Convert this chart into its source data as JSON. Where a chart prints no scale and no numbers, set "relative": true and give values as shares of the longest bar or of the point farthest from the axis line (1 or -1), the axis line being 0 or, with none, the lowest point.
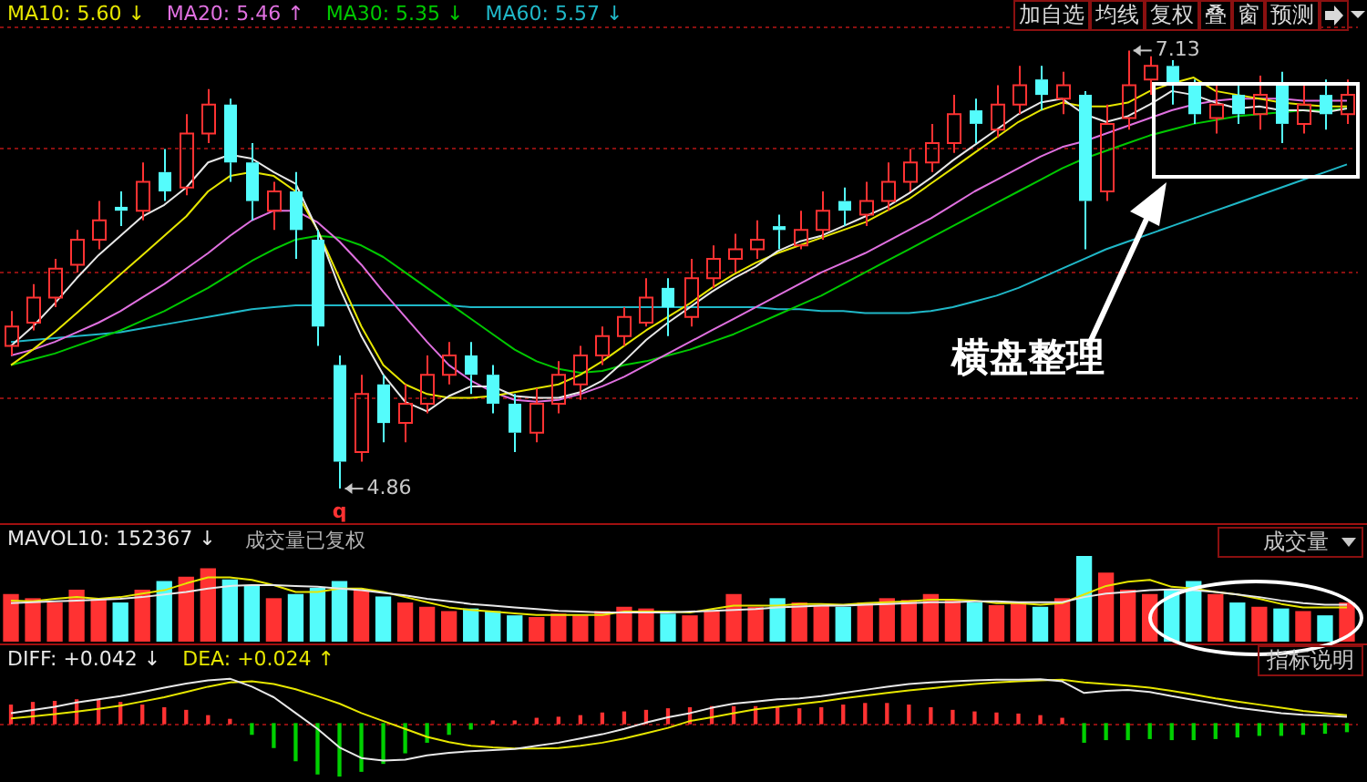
{
  "chart_data": [
    {
      "type": "candlestick",
      "legend": "top left",
      "grid": "y",
      "tick_labels": false,
      "categories": [
        null,
        null,
        null,
        null,
        null,
        null,
        null,
        null,
        null,
        null,
        null,
        null,
        null,
        null,
        null,
        null,
        null,
        null,
        null,
        null,
        null,
        null,
        null,
        null,
        null,
        null,
        null,
        null,
        null,
        null,
        null,
        null,
        null,
        null,
        null,
        null,
        null,
        null,
        null,
        null,
        null,
        null,
        null,
        null,
        null,
        null,
        null,
        null,
        null,
        null,
        null,
        null,
        null,
        null,
        null,
        null,
        null,
        null,
        null,
        null,
        null,
        null
      ],
      "ylim": [
        4.7,
        7.25
      ],
      "yticks": [
        {
          "value": 5.33,
          "label": null
        },
        {
          "value": 5.98,
          "label": null
        },
        {
          "value": 6.62,
          "label": null
        },
        {
          "value": 7.25,
          "label": null
        }
      ],
      "ohlc": [
        [
          5.6,
          5.78,
          5.55,
          5.7
        ],
        [
          5.72,
          5.92,
          5.68,
          5.85
        ],
        [
          5.85,
          6.05,
          5.8,
          6.0
        ],
        [
          6.02,
          6.2,
          5.98,
          6.15
        ],
        [
          6.15,
          6.35,
          6.1,
          6.25
        ],
        [
          6.32,
          6.4,
          6.22,
          6.3
        ],
        [
          6.3,
          6.55,
          6.25,
          6.45
        ],
        [
          6.5,
          6.62,
          6.35,
          6.4
        ],
        [
          6.42,
          6.8,
          6.38,
          6.7
        ],
        [
          6.7,
          6.93,
          6.65,
          6.85
        ],
        [
          6.85,
          6.88,
          6.45,
          6.55
        ],
        [
          6.55,
          6.65,
          6.25,
          6.35
        ],
        [
          6.3,
          6.45,
          6.2,
          6.4
        ],
        [
          6.4,
          6.5,
          6.05,
          6.2
        ],
        [
          6.15,
          6.2,
          5.6,
          5.7
        ],
        [
          5.5,
          5.55,
          4.86,
          5.0
        ],
        [
          5.05,
          5.45,
          5.0,
          5.35
        ],
        [
          5.4,
          5.45,
          5.1,
          5.2
        ],
        [
          5.2,
          5.4,
          5.1,
          5.3
        ],
        [
          5.3,
          5.55,
          5.25,
          5.45
        ],
        [
          5.45,
          5.62,
          5.4,
          5.55
        ],
        [
          5.55,
          5.62,
          5.35,
          5.45
        ],
        [
          5.45,
          5.5,
          5.25,
          5.3
        ],
        [
          5.3,
          5.35,
          5.05,
          5.15
        ],
        [
          5.15,
          5.38,
          5.1,
          5.3
        ],
        [
          5.3,
          5.52,
          5.25,
          5.45
        ],
        [
          5.4,
          5.6,
          5.32,
          5.55
        ],
        [
          5.55,
          5.7,
          5.5,
          5.65
        ],
        [
          5.65,
          5.8,
          5.6,
          5.75
        ],
        [
          5.72,
          5.95,
          5.7,
          5.85
        ],
        [
          5.9,
          5.95,
          5.65,
          5.8
        ],
        [
          5.75,
          6.05,
          5.7,
          5.95
        ],
        [
          5.95,
          6.12,
          5.9,
          6.05
        ],
        [
          6.05,
          6.18,
          5.98,
          6.1
        ],
        [
          6.1,
          6.25,
          6.05,
          6.15
        ],
        [
          6.22,
          6.28,
          6.1,
          6.2
        ],
        [
          6.12,
          6.3,
          6.1,
          6.2
        ],
        [
          6.2,
          6.4,
          6.15,
          6.3
        ],
        [
          6.35,
          6.42,
          6.22,
          6.3
        ],
        [
          6.28,
          6.45,
          6.22,
          6.35
        ],
        [
          6.35,
          6.55,
          6.3,
          6.45
        ],
        [
          6.45,
          6.62,
          6.4,
          6.55
        ],
        [
          6.55,
          6.75,
          6.5,
          6.65
        ],
        [
          6.65,
          6.9,
          6.6,
          6.8
        ],
        [
          6.82,
          6.88,
          6.65,
          6.75
        ],
        [
          6.72,
          6.95,
          6.68,
          6.85
        ],
        [
          6.85,
          7.05,
          6.8,
          6.95
        ],
        [
          6.98,
          7.05,
          6.82,
          6.9
        ],
        [
          6.88,
          7.02,
          6.8,
          6.95
        ],
        [
          6.9,
          6.92,
          6.1,
          6.35
        ],
        [
          6.4,
          6.85,
          6.35,
          6.75
        ],
        [
          6.78,
          7.13,
          6.72,
          6.95
        ],
        [
          6.98,
          7.1,
          6.9,
          7.05
        ],
        [
          7.05,
          7.08,
          6.85,
          6.95
        ],
        [
          6.95,
          6.98,
          6.75,
          6.8
        ],
        [
          6.78,
          6.95,
          6.7,
          6.85
        ],
        [
          6.9,
          6.95,
          6.75,
          6.8
        ],
        [
          6.8,
          7.0,
          6.72,
          6.9
        ],
        [
          6.95,
          7.02,
          6.65,
          6.75
        ],
        [
          6.75,
          6.95,
          6.7,
          6.85
        ],
        [
          6.9,
          6.98,
          6.72,
          6.8
        ],
        [
          6.8,
          6.98,
          6.75,
          6.9
        ]
      ],
      "colors": [
        "#ff3232",
        "#ff3232",
        "#ff3232",
        "#ff3232",
        "#ff3232",
        "#54fcfc",
        "#ff3232",
        "#54fcfc",
        "#ff3232",
        "#ff3232",
        "#54fcfc",
        "#54fcfc",
        "#ff3232",
        "#54fcfc",
        "#54fcfc",
        "#54fcfc",
        "#ff3232",
        "#54fcfc",
        "#ff3232",
        "#ff3232",
        "#ff3232",
        "#54fcfc",
        "#54fcfc",
        "#54fcfc",
        "#ff3232",
        "#ff3232",
        "#ff3232",
        "#ff3232",
        "#ff3232",
        "#ff3232",
        "#54fcfc",
        "#ff3232",
        "#ff3232",
        "#ff3232",
        "#ff3232",
        "#54fcfc",
        "#ff3232",
        "#ff3232",
        "#54fcfc",
        "#ff3232",
        "#ff3232",
        "#ff3232",
        "#ff3232",
        "#ff3232",
        "#54fcfc",
        "#ff3232",
        "#ff3232",
        "#54fcfc",
        "#ff3232",
        "#54fcfc",
        "#ff3232",
        "#ff3232",
        "#ff3232",
        "#54fcfc",
        "#54fcfc",
        "#ff3232",
        "#54fcfc",
        "#ff3232",
        "#54fcfc",
        "#ff3232",
        "#54fcfc",
        "#ff3232"
      ],
      "series": [
        {
          "type": "line",
          "color": "#e8e8e8",
          "values": [
            5.6,
            5.7,
            5.82,
            5.95,
            6.07,
            6.17,
            6.27,
            6.33,
            6.42,
            6.55,
            6.59,
            6.57,
            6.5,
            6.44,
            6.2,
            5.9,
            5.65,
            5.45,
            5.31,
            5.26,
            5.34,
            5.39,
            5.39,
            5.34,
            5.33,
            5.33,
            5.36,
            5.42,
            5.52,
            5.63,
            5.72,
            5.8,
            5.88,
            5.95,
            6.01,
            6.09,
            6.14,
            6.17,
            6.22,
            6.27,
            6.32,
            6.39,
            6.47,
            6.56,
            6.64,
            6.72,
            6.8,
            6.86,
            6.88,
            6.8,
            6.76,
            6.79,
            6.85,
            6.92,
            6.9,
            6.86,
            6.83,
            6.84,
            6.82,
            6.82,
            6.81,
            6.83
          ]
        },
        {
          "type": "line",
          "name": "MA10: 5.60 ↓",
          "color": "#e6e600",
          "values": [
            5.5,
            5.58,
            5.67,
            5.77,
            5.87,
            5.97,
            6.07,
            6.17,
            6.27,
            6.4,
            6.48,
            6.5,
            6.48,
            6.4,
            6.2,
            5.95,
            5.7,
            5.5,
            5.4,
            5.35,
            5.33,
            5.33,
            5.34,
            5.36,
            5.38,
            5.4,
            5.45,
            5.52,
            5.6,
            5.68,
            5.75,
            5.82,
            5.9,
            5.97,
            6.03,
            6.08,
            6.12,
            6.16,
            6.2,
            6.24,
            6.3,
            6.36,
            6.44,
            6.52,
            6.6,
            6.68,
            6.76,
            6.82,
            6.86,
            6.84,
            6.84,
            6.86,
            6.92,
            6.96,
            6.99,
            6.92,
            6.9,
            6.88,
            6.86,
            6.85,
            6.84,
            6.84
          ]
        },
        {
          "type": "line",
          "name": "MA20: 5.46 ↑",
          "color": "#e070e0",
          "values": [
            5.55,
            5.58,
            5.62,
            5.67,
            5.72,
            5.78,
            5.85,
            5.92,
            6.0,
            6.08,
            6.17,
            6.25,
            6.3,
            6.3,
            6.24,
            6.14,
            6.02,
            5.88,
            5.75,
            5.62,
            5.5,
            5.42,
            5.36,
            5.32,
            5.31,
            5.32,
            5.35,
            5.39,
            5.44,
            5.5,
            5.56,
            5.62,
            5.68,
            5.74,
            5.8,
            5.86,
            5.92,
            5.98,
            6.03,
            6.08,
            6.14,
            6.2,
            6.26,
            6.33,
            6.4,
            6.46,
            6.52,
            6.58,
            6.63,
            6.66,
            6.7,
            6.74,
            6.78,
            6.82,
            6.85,
            6.87,
            6.88,
            6.88,
            6.88,
            6.87,
            6.87,
            6.87
          ]
        },
        {
          "type": "line",
          "name": "MA30: 5.35 ↓",
          "color": "#00c800",
          "values": [
            5.5,
            5.53,
            5.56,
            5.6,
            5.64,
            5.68,
            5.73,
            5.78,
            5.84,
            5.9,
            5.97,
            6.04,
            6.1,
            6.15,
            6.17,
            6.16,
            6.12,
            6.06,
            5.98,
            5.9,
            5.82,
            5.74,
            5.66,
            5.58,
            5.52,
            5.48,
            5.46,
            5.47,
            5.5,
            5.52,
            5.55,
            5.58,
            5.62,
            5.66,
            5.71,
            5.76,
            5.81,
            5.86,
            5.92,
            5.98,
            6.04,
            6.1,
            6.16,
            6.22,
            6.28,
            6.34,
            6.4,
            6.46,
            6.52,
            6.57,
            6.61,
            6.65,
            6.69,
            6.72,
            6.75,
            6.77,
            6.79,
            6.8,
            6.81,
            6.82,
            6.82,
            6.83
          ]
        },
        {
          "type": "line",
          "name": "MA60: 5.57 ↓",
          "color": "#20b8c8",
          "values": [
            5.62,
            5.63,
            5.64,
            5.65,
            5.66,
            5.67,
            5.69,
            5.71,
            5.73,
            5.75,
            5.77,
            5.79,
            5.8,
            5.81,
            5.81,
            5.81,
            5.81,
            5.81,
            5.81,
            5.81,
            5.81,
            5.8,
            5.8,
            5.8,
            5.8,
            5.8,
            5.8,
            5.8,
            5.8,
            5.8,
            5.8,
            5.8,
            5.8,
            5.8,
            5.8,
            5.79,
            5.79,
            5.78,
            5.78,
            5.77,
            5.77,
            5.77,
            5.78,
            5.8,
            5.83,
            5.86,
            5.9,
            5.95,
            6.0,
            6.05,
            6.1,
            6.14,
            6.18,
            6.22,
            6.26,
            6.3,
            6.34,
            6.38,
            6.42,
            6.46,
            6.5,
            6.54
          ]
        }
      ],
      "annotations": [
        "加自选",
        "均线",
        "复权",
        "叠",
        "窗",
        "预测",
        "横盘整理",
        "7.13",
        "4.86",
        "q"
      ]
    },
    {
      "type": "bar",
      "relative": true,
      "legend": "top left",
      "tick_labels": false,
      "categories": [
        null,
        null,
        null,
        null,
        null,
        null,
        null,
        null,
        null,
        null,
        null,
        null,
        null,
        null,
        null,
        null,
        null,
        null,
        null,
        null,
        null,
        null,
        null,
        null,
        null,
        null,
        null,
        null,
        null,
        null,
        null,
        null,
        null,
        null,
        null,
        null,
        null,
        null,
        null,
        null,
        null,
        null,
        null,
        null,
        null,
        null,
        null,
        null,
        null,
        null,
        null,
        null,
        null,
        null,
        null,
        null,
        null,
        null,
        null,
        null,
        null,
        null
      ],
      "values": [
        0.55,
        0.5,
        0.45,
        0.6,
        0.5,
        0.45,
        0.6,
        0.7,
        0.75,
        0.85,
        0.72,
        0.65,
        0.5,
        0.55,
        0.62,
        0.7,
        0.6,
        0.52,
        0.45,
        0.4,
        0.35,
        0.38,
        0.35,
        0.3,
        0.28,
        0.32,
        0.3,
        0.35,
        0.4,
        0.38,
        0.32,
        0.3,
        0.35,
        0.55,
        0.4,
        0.5,
        0.45,
        0.42,
        0.4,
        0.45,
        0.5,
        0.48,
        0.55,
        0.48,
        0.45,
        0.42,
        0.45,
        0.4,
        0.5,
        1,
        0.8,
        0.6,
        0.55,
        0.6,
        0.7,
        0.55,
        0.45,
        0.4,
        0.38,
        0.35,
        0.3,
        0.45
      ],
      "colors": [
        "#ff3232",
        "#ff3232",
        "#ff3232",
        "#ff3232",
        "#ff3232",
        "#54fcfc",
        "#ff3232",
        "#54fcfc",
        "#ff3232",
        "#ff3232",
        "#54fcfc",
        "#54fcfc",
        "#ff3232",
        "#54fcfc",
        "#54fcfc",
        "#54fcfc",
        "#ff3232",
        "#54fcfc",
        "#ff3232",
        "#ff3232",
        "#ff3232",
        "#54fcfc",
        "#54fcfc",
        "#54fcfc",
        "#ff3232",
        "#ff3232",
        "#ff3232",
        "#ff3232",
        "#ff3232",
        "#ff3232",
        "#54fcfc",
        "#ff3232",
        "#ff3232",
        "#ff3232",
        "#ff3232",
        "#54fcfc",
        "#ff3232",
        "#ff3232",
        "#54fcfc",
        "#ff3232",
        "#ff3232",
        "#ff3232",
        "#ff3232",
        "#ff3232",
        "#54fcfc",
        "#ff3232",
        "#ff3232",
        "#54fcfc",
        "#ff3232",
        "#54fcfc",
        "#ff3232",
        "#ff3232",
        "#ff3232",
        "#54fcfc",
        "#54fcfc",
        "#ff3232",
        "#54fcfc",
        "#ff3232",
        "#54fcfc",
        "#ff3232",
        "#54fcfc",
        "#ff3232"
      ],
      "series": [
        {
          "type": "line",
          "name": "MAVOL10: 152367 ↓",
          "color": "#e8e8e8",
          "values": [
            0.45,
            0.46,
            0.47,
            0.48,
            0.49,
            0.5,
            0.52,
            0.55,
            0.58,
            0.62,
            0.65,
            0.66,
            0.66,
            0.65,
            0.64,
            0.62,
            0.6,
            0.57,
            0.54,
            0.5,
            0.47,
            0.44,
            0.42,
            0.4,
            0.38,
            0.36,
            0.35,
            0.34,
            0.34,
            0.34,
            0.34,
            0.35,
            0.36,
            0.37,
            0.38,
            0.4,
            0.41,
            0.42,
            0.42,
            0.43,
            0.44,
            0.45,
            0.46,
            0.46,
            0.47,
            0.47,
            0.46,
            0.46,
            0.46,
            0.52,
            0.56,
            0.58,
            0.6,
            0.61,
            0.6,
            0.58,
            0.55,
            0.52,
            0.48,
            0.45,
            0.43,
            0.43
          ]
        },
        {
          "type": "line",
          "color": "#e6e600",
          "values": [
            0.48,
            0.47,
            0.5,
            0.52,
            0.5,
            0.52,
            0.56,
            0.6,
            0.68,
            0.75,
            0.75,
            0.72,
            0.66,
            0.58,
            0.58,
            0.62,
            0.62,
            0.58,
            0.52,
            0.46,
            0.4,
            0.37,
            0.35,
            0.33,
            0.31,
            0.31,
            0.31,
            0.31,
            0.35,
            0.35,
            0.35,
            0.34,
            0.38,
            0.42,
            0.42,
            0.42,
            0.44,
            0.44,
            0.43,
            0.45,
            0.46,
            0.47,
            0.49,
            0.49,
            0.48,
            0.45,
            0.45,
            0.43,
            0.45,
            0.55,
            0.65,
            0.7,
            0.72,
            0.64,
            0.62,
            0.58,
            0.55,
            0.5,
            0.44,
            0.4,
            0.4,
            0.4
          ]
        }
      ],
      "annotations": [
        "成交量已复权",
        "成交量",
        "指标说明"
      ]
    },
    {
      "type": "line",
      "relative": true,
      "legend": "top left",
      "tick_labels": false,
      "ref_lines": [
        {
          "axis": "y",
          "value": 0,
          "color": "#8a1010",
          "line_style": "dashed"
        }
      ],
      "categories": [
        null,
        null,
        null,
        null,
        null,
        null,
        null,
        null,
        null,
        null,
        null,
        null,
        null,
        null,
        null,
        null,
        null,
        null,
        null,
        null,
        null,
        null,
        null,
        null,
        null,
        null,
        null,
        null,
        null,
        null,
        null,
        null,
        null,
        null,
        null,
        null,
        null,
        null,
        null,
        null,
        null,
        null,
        null,
        null,
        null,
        null,
        null,
        null,
        null,
        null,
        null,
        null,
        null,
        null,
        null,
        null,
        null,
        null,
        null,
        null,
        null,
        null
      ],
      "series": [
        {
          "type": "bar",
          "values": [
            0.35,
            0.4,
            0.42,
            0.45,
            0.45,
            0.4,
            0.35,
            0.3,
            0.25,
            0.15,
            0.08,
            -0.2,
            -0.45,
            -0.7,
            -0.95,
            -1,
            -0.9,
            -0.75,
            -0.55,
            -0.35,
            -0.2,
            -0.1,
            0.05,
            0.05,
            0.1,
            0.12,
            0.15,
            0.2,
            0.22,
            0.25,
            0.28,
            0.3,
            0.32,
            0.32,
            0.32,
            0.3,
            0.28,
            0.3,
            0.35,
            0.38,
            0.38,
            0.35,
            0.3,
            0.25,
            0.22,
            0.2,
            0.18,
            0.15,
            0.1,
            -0.35,
            -0.3,
            -0.3,
            -0.28,
            -0.3,
            -0.3,
            -0.28,
            -0.25,
            -0.22,
            -0.22,
            -0.2,
            -0.18,
            -0.15
          ],
          "colors": [
            "#ff3232",
            "#ff3232",
            "#ff3232",
            "#ff3232",
            "#ff3232",
            "#ff3232",
            "#ff3232",
            "#ff3232",
            "#ff3232",
            "#ff3232",
            "#ff3232",
            "#00d000",
            "#00d000",
            "#00d000",
            "#00d000",
            "#00d000",
            "#00d000",
            "#00d000",
            "#00d000",
            "#00d000",
            "#00d000",
            "#00d000",
            "#ff3232",
            "#ff3232",
            "#ff3232",
            "#ff3232",
            "#ff3232",
            "#ff3232",
            "#ff3232",
            "#ff3232",
            "#ff3232",
            "#ff3232",
            "#ff3232",
            "#ff3232",
            "#ff3232",
            "#ff3232",
            "#ff3232",
            "#ff3232",
            "#ff3232",
            "#ff3232",
            "#ff3232",
            "#ff3232",
            "#ff3232",
            "#ff3232",
            "#ff3232",
            "#ff3232",
            "#ff3232",
            "#ff3232",
            "#ff3232",
            "#00d000",
            "#00d000",
            "#00d000",
            "#00d000",
            "#00d000",
            "#00d000",
            "#00d000",
            "#00d000",
            "#00d000",
            "#00d000",
            "#00d000",
            "#00d000",
            "#00d000"
          ]
        },
        {
          "type": "line",
          "name": "DIFF: +0.042 ↓",
          "color": "#e8e8e8",
          "values": [
            0.2,
            0.26,
            0.32,
            0.4,
            0.46,
            0.52,
            0.6,
            0.68,
            0.76,
            0.82,
            0.85,
            0.7,
            0.5,
            0.2,
            -0.1,
            -0.45,
            -0.65,
            -0.7,
            -0.68,
            -0.6,
            -0.55,
            -0.52,
            -0.5,
            -0.48,
            -0.42,
            -0.36,
            -0.28,
            -0.2,
            -0.1,
            0.02,
            0.12,
            0.2,
            0.3,
            0.38,
            0.42,
            0.46,
            0.48,
            0.52,
            0.58,
            0.64,
            0.7,
            0.75,
            0.78,
            0.8,
            0.82,
            0.83,
            0.83,
            0.84,
            0.8,
            0.58,
            0.62,
            0.64,
            0.6,
            0.52,
            0.45,
            0.38,
            0.3,
            0.25,
            0.2,
            0.17,
            0.15,
            0.13
          ]
        },
        {
          "type": "line",
          "name": "DEA: +0.024 ↑",
          "color": "#e6e600",
          "values": [
            0.1,
            0.14,
            0.18,
            0.23,
            0.28,
            0.34,
            0.42,
            0.5,
            0.6,
            0.7,
            0.78,
            0.8,
            0.75,
            0.65,
            0.52,
            0.38,
            0.2,
            0.05,
            -0.1,
            -0.25,
            -0.35,
            -0.42,
            -0.45,
            -0.47,
            -0.47,
            -0.46,
            -0.42,
            -0.36,
            -0.28,
            -0.18,
            -0.08,
            0.05,
            0.12,
            0.2,
            0.27,
            0.32,
            0.37,
            0.42,
            0.48,
            0.53,
            0.58,
            0.63,
            0.67,
            0.71,
            0.75,
            0.78,
            0.8,
            0.82,
            0.83,
            0.78,
            0.75,
            0.72,
            0.68,
            0.62,
            0.55,
            0.48,
            0.42,
            0.36,
            0.3,
            0.24,
            0.2,
            0.16
          ]
        }
      ]
    }
  ]
}
